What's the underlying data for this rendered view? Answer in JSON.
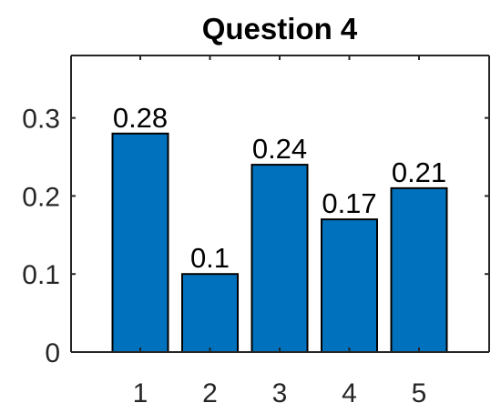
{
  "chart_data": {
    "type": "bar",
    "title": "Question 4",
    "xlabel": "",
    "ylabel": "",
    "categories": [
      "1",
      "2",
      "3",
      "4",
      "5"
    ],
    "values": [
      0.28,
      0.1,
      0.24,
      0.17,
      0.21
    ],
    "data_labels": [
      "0.28",
      "0.1",
      "0.24",
      "0.17",
      "0.21"
    ],
    "ylim": [
      0,
      0.38
    ],
    "yticks": [
      0,
      0.1,
      0.2,
      0.3
    ],
    "ytick_labels": [
      "0",
      "0.1",
      "0.2",
      "0.3"
    ],
    "grid": false,
    "legend": "none",
    "bar_color": "#0072BD",
    "bar_edge_color": "#000000"
  }
}
